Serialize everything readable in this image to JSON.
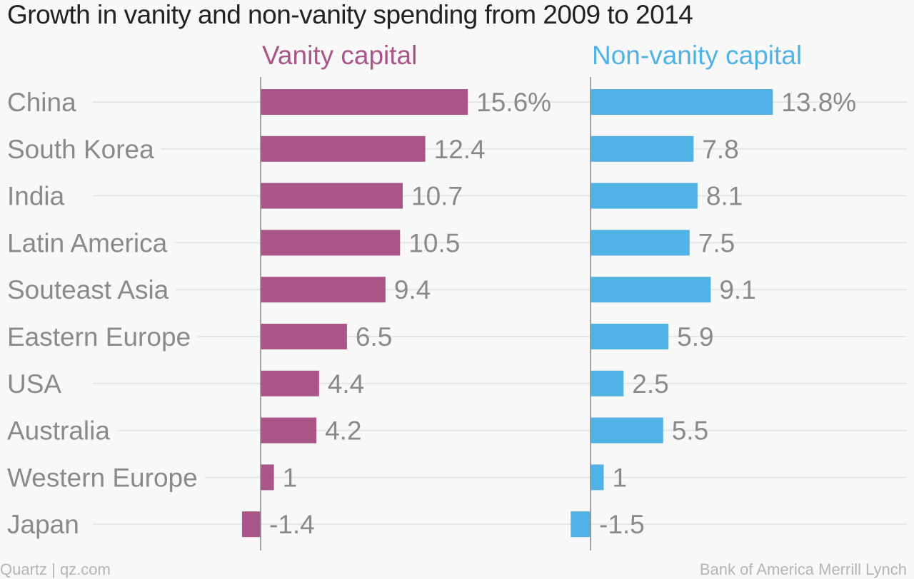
{
  "chart_data": {
    "type": "bar",
    "orientation": "horizontal",
    "title": "Growth in vanity and non-vanity spending from 2009 to 2014",
    "categories": [
      "China",
      "South Korea",
      "India",
      "Latin America",
      "Souteast Asia",
      "Eastern Europe",
      "USA",
      "Australia",
      "Western Europe",
      "Japan"
    ],
    "series": [
      {
        "name": "Vanity capital",
        "color": "#a95587",
        "values": [
          15.6,
          12.4,
          10.7,
          10.5,
          9.4,
          6.5,
          4.4,
          4.2,
          1,
          -1.4
        ],
        "labels": [
          "15.6%",
          "12.4",
          "10.7",
          "10.5",
          "9.4",
          "6.5",
          "4.4",
          "4.2",
          "1",
          "-1.4"
        ]
      },
      {
        "name": "Non-vanity capital",
        "color": "#51b2e5",
        "values": [
          13.8,
          7.8,
          8.1,
          7.5,
          9.1,
          5.9,
          2.5,
          5.5,
          1,
          -1.5
        ],
        "labels": [
          "13.8%",
          "7.8",
          "8.1",
          "7.5",
          "9.1",
          "5.9",
          "2.5",
          "5.5",
          "1",
          "-1.5"
        ]
      }
    ],
    "grid": true,
    "legend": "panel titles"
  },
  "footer": {
    "left": "Quartz | qz.com",
    "right": "Bank of America Merrill Lynch"
  }
}
